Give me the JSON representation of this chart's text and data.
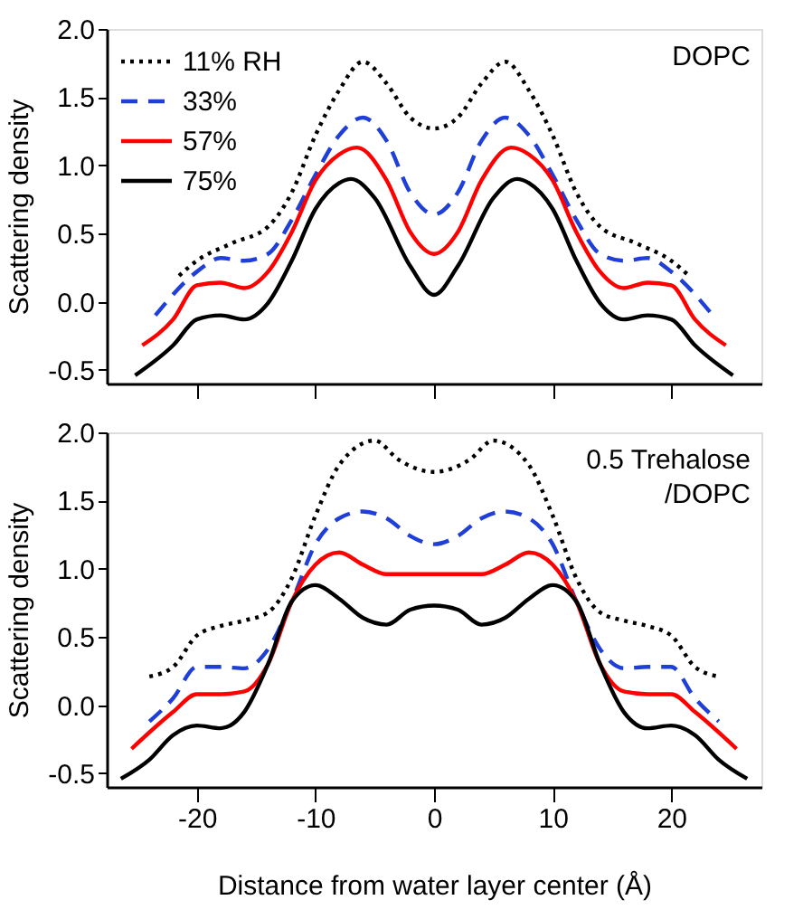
{
  "chart_data": [
    {
      "type": "line",
      "ylabel": "Scattering density",
      "xlim": [
        -27.6,
        27.6
      ],
      "ylim": [
        -0.6,
        2.0
      ],
      "xticks": [
        -20,
        -10,
        0,
        10,
        20
      ],
      "yticks": [
        {
          "value": -0.5,
          "label": "-0.5"
        },
        {
          "value": 0,
          "label": "0.0"
        },
        {
          "value": 0.5,
          "label": "0.5"
        },
        {
          "value": 1,
          "label": "1.0"
        },
        {
          "value": 1.5,
          "label": "1.5"
        },
        {
          "value": 2,
          "label": "2.0"
        }
      ],
      "tick_labels": "y",
      "grid": false,
      "legend": "top left",
      "annotations": [
        "DOPC"
      ],
      "series": [
        {
          "name": "11% RH",
          "color": "#000000",
          "line_style": "dotted",
          "x": [
            -21.5,
            -20,
            -17,
            -14,
            -12,
            -10,
            -8,
            -6,
            -4,
            -2,
            0,
            2,
            4,
            6,
            8,
            10,
            12,
            14,
            17,
            20,
            21.5
          ],
          "values": [
            0.19,
            0.3,
            0.43,
            0.55,
            0.8,
            1.22,
            1.55,
            1.76,
            1.6,
            1.35,
            1.27,
            1.35,
            1.6,
            1.76,
            1.55,
            1.22,
            0.8,
            0.55,
            0.43,
            0.3,
            0.19
          ]
        },
        {
          "name": "33%",
          "color": "#1f3fd8",
          "line_style": "dashed",
          "x": [
            -23.5,
            -20,
            -18,
            -16,
            -14,
            -12,
            -10,
            -8,
            -6,
            -4,
            -2,
            0,
            2,
            4,
            6,
            8,
            10,
            12,
            14,
            16,
            18,
            20,
            23.5
          ],
          "values": [
            -0.1,
            0.22,
            0.32,
            0.3,
            0.35,
            0.6,
            0.93,
            1.22,
            1.35,
            1.18,
            0.8,
            0.64,
            0.8,
            1.18,
            1.35,
            1.22,
            0.93,
            0.6,
            0.35,
            0.3,
            0.32,
            0.22,
            -0.1
          ]
        },
        {
          "name": "57%",
          "color": "#ff0000",
          "line_style": "solid",
          "x": [
            -24.6,
            -22,
            -20,
            -18,
            -16,
            -14,
            -12,
            -10,
            -8,
            -6.5,
            -4,
            -2,
            0,
            2,
            4,
            6.5,
            8,
            10,
            12,
            14,
            16,
            18,
            20,
            22,
            24.6
          ],
          "values": [
            -0.32,
            -0.13,
            0.12,
            0.14,
            0.1,
            0.22,
            0.51,
            0.89,
            1.08,
            1.13,
            0.89,
            0.51,
            0.35,
            0.51,
            0.89,
            1.13,
            1.08,
            0.89,
            0.51,
            0.22,
            0.1,
            0.14,
            0.12,
            -0.13,
            -0.32
          ]
        },
        {
          "name": "75%",
          "color": "#000000",
          "line_style": "solid",
          "x": [
            -25.2,
            -22,
            -20,
            -18,
            -16,
            -14,
            -12,
            -10,
            -8,
            -7,
            -5,
            -2,
            0,
            2,
            5,
            7,
            8,
            10,
            12,
            14,
            16,
            18,
            20,
            22,
            25.2
          ],
          "values": [
            -0.54,
            -0.32,
            -0.13,
            -0.1,
            -0.13,
            -0.01,
            0.3,
            0.68,
            0.87,
            0.9,
            0.76,
            0.26,
            0.05,
            0.26,
            0.76,
            0.9,
            0.87,
            0.68,
            0.3,
            -0.01,
            -0.13,
            -0.1,
            -0.13,
            -0.32,
            -0.54
          ]
        }
      ]
    },
    {
      "type": "line",
      "xlabel": "Distance from water layer center (Å)",
      "ylabel": "Scattering density",
      "xlim": [
        -27.6,
        27.6
      ],
      "ylim": [
        -0.6,
        2.0
      ],
      "xticks": [
        -20,
        -10,
        0,
        10,
        20
      ],
      "yticks": [
        {
          "value": -0.5,
          "label": "-0.5"
        },
        {
          "value": 0,
          "label": "0.0"
        },
        {
          "value": 0.5,
          "label": "0.5"
        },
        {
          "value": 1,
          "label": "1.0"
        },
        {
          "value": 1.5,
          "label": "1.5"
        },
        {
          "value": 2,
          "label": "2.0"
        }
      ],
      "grid": false,
      "annotations": [
        "0.5 Trehalose\n/DOPC"
      ],
      "series": [
        {
          "color": "#000000",
          "line_style": "dotted",
          "x": [
            -24,
            -22,
            -20,
            -18,
            -16,
            -14,
            -12,
            -10,
            -8,
            -5,
            -3,
            0,
            3,
            5,
            8,
            10,
            12,
            14,
            16,
            18,
            20,
            22,
            24
          ],
          "values": [
            0.21,
            0.28,
            0.51,
            0.58,
            0.62,
            0.68,
            0.93,
            1.39,
            1.76,
            1.94,
            1.8,
            1.71,
            1.8,
            1.94,
            1.76,
            1.39,
            0.93,
            0.68,
            0.62,
            0.58,
            0.51,
            0.28,
            0.21
          ]
        },
        {
          "color": "#1f3fd8",
          "line_style": "dashed",
          "x": [
            -24,
            -22,
            -20,
            -18,
            -16,
            -14,
            -12,
            -10,
            -8,
            -6,
            -4,
            -2,
            0,
            2,
            4,
            6,
            8,
            10,
            12,
            14,
            16,
            18,
            20,
            22,
            24
          ],
          "values": [
            -0.12,
            0.05,
            0.28,
            0.28,
            0.27,
            0.41,
            0.76,
            1.18,
            1.37,
            1.42,
            1.37,
            1.24,
            1.18,
            1.24,
            1.37,
            1.42,
            1.37,
            1.18,
            0.76,
            0.41,
            0.27,
            0.28,
            0.28,
            0.05,
            -0.12
          ]
        },
        {
          "color": "#ff0000",
          "line_style": "solid",
          "x": [
            -25.5,
            -22,
            -20,
            -18,
            -16,
            -14,
            -12,
            -10,
            -8,
            -6,
            -4,
            -2,
            0,
            2,
            4,
            6,
            8,
            10,
            12,
            14,
            16,
            18,
            20,
            22,
            25.5
          ],
          "values": [
            -0.32,
            -0.05,
            0.08,
            0.08,
            0.1,
            0.3,
            0.76,
            1.03,
            1.12,
            1.03,
            0.96,
            0.96,
            0.96,
            0.96,
            0.96,
            1.03,
            1.12,
            1.03,
            0.76,
            0.3,
            0.1,
            0.08,
            0.08,
            -0.05,
            -0.32
          ]
        },
        {
          "color": "#000000",
          "line_style": "solid",
          "x": [
            -26.4,
            -24,
            -22,
            -20,
            -18,
            -16,
            -14,
            -12,
            -10,
            -8,
            -6,
            -4,
            -2,
            0,
            2,
            4,
            6,
            8,
            10,
            12,
            14,
            16,
            18,
            20,
            22,
            24,
            26.4
          ],
          "values": [
            -0.54,
            -0.4,
            -0.22,
            -0.15,
            -0.17,
            -0.05,
            0.3,
            0.76,
            0.88,
            0.78,
            0.64,
            0.59,
            0.7,
            0.73,
            0.7,
            0.59,
            0.64,
            0.78,
            0.88,
            0.76,
            0.3,
            -0.05,
            -0.17,
            -0.15,
            -0.22,
            -0.4,
            -0.54
          ]
        }
      ]
    }
  ]
}
